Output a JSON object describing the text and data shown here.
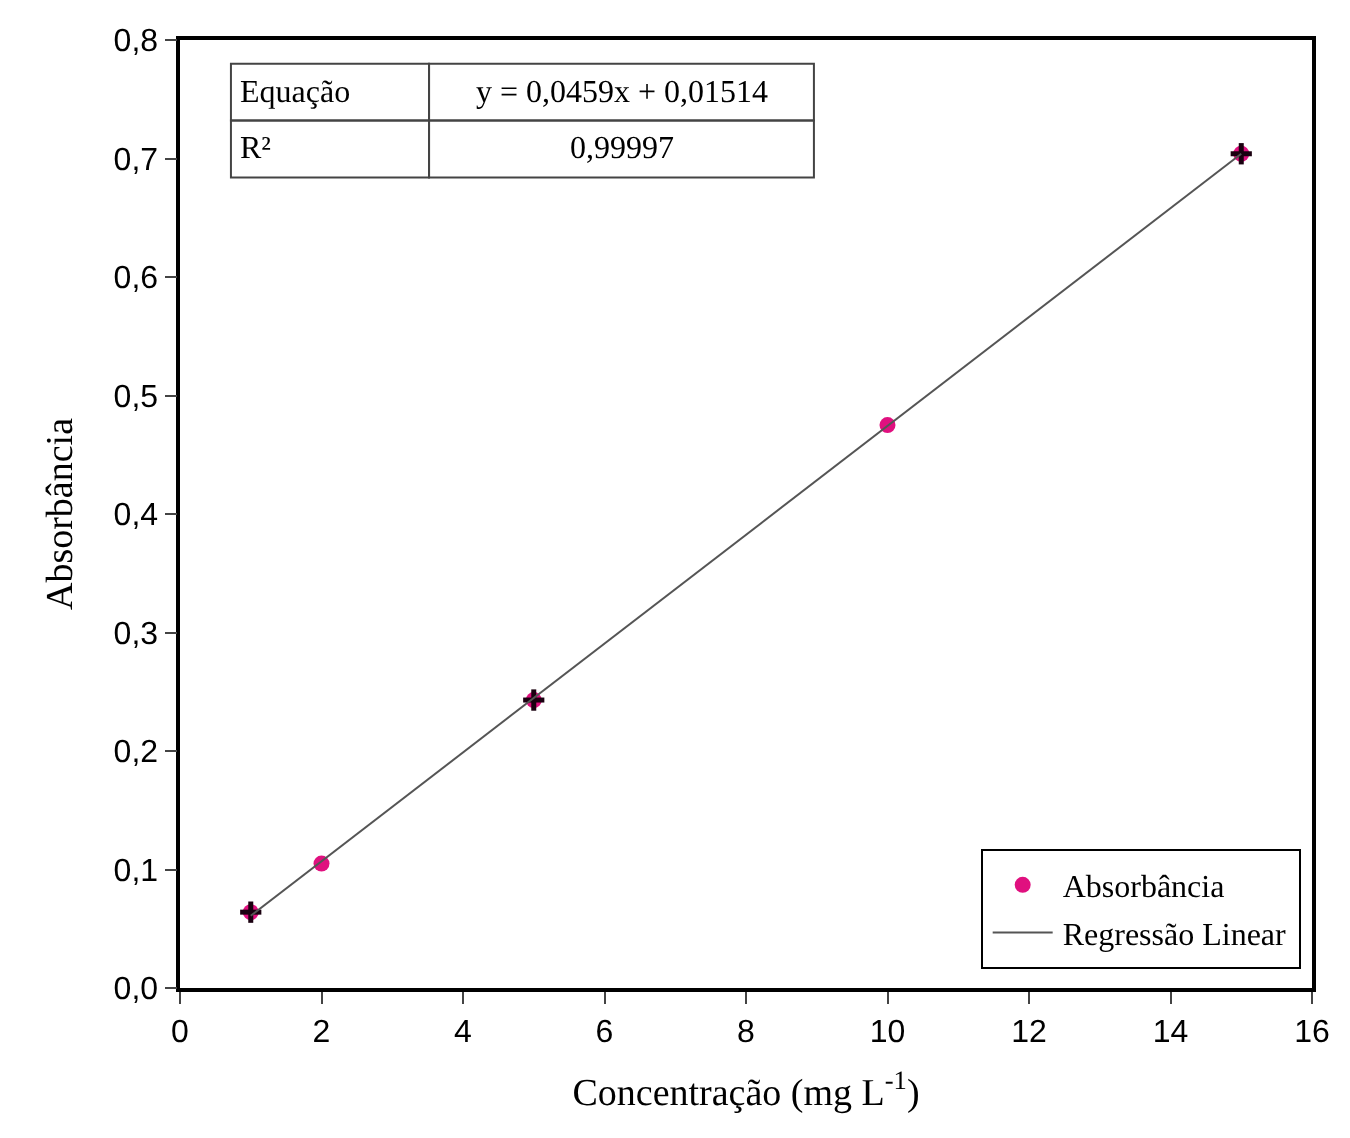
{
  "chart_data": {
    "type": "scatter",
    "xlabel": "Concentração (mg L$^{-1}$)",
    "ylabel": "Absorbância",
    "xlim": [
      0,
      16
    ],
    "xticks": [
      0,
      2,
      4,
      6,
      8,
      10,
      12,
      14,
      16
    ],
    "ylim": [
      0,
      0.8
    ],
    "yticks": [
      {
        "value": 0,
        "label": "0,0"
      },
      {
        "value": 0.1,
        "label": "0,1"
      },
      {
        "value": 0.2,
        "label": "0,2"
      },
      {
        "value": 0.3,
        "label": "0,3"
      },
      {
        "value": 0.4,
        "label": "0,4"
      },
      {
        "value": 0.5,
        "label": "0,5"
      },
      {
        "value": 0.6,
        "label": "0,6"
      },
      {
        "value": 0.7,
        "label": "0,7"
      },
      {
        "value": 0.8,
        "label": "0,8"
      }
    ],
    "series": [
      {
        "name": "Absorbância",
        "color": "#e0107f",
        "marker": "circle",
        "x": [
          1,
          2,
          5,
          10,
          15
        ],
        "values": [
          0.064,
          0.105,
          0.243,
          0.475,
          0.704
        ],
        "errors": [
          0.009,
          null,
          0.009,
          null,
          0.009
        ],
        "xerrors": [
          0.15,
          null,
          0.15,
          null,
          0.15
        ]
      },
      {
        "name": "Regressão Linear",
        "type": "line",
        "color": "#555555",
        "line_style": "solid",
        "x": [
          1,
          15
        ],
        "values": [
          0.061,
          0.704
        ]
      }
    ],
    "annotations": [
      "Equação",
      "y = 0,0459x + 0,01514",
      "R²",
      "0,99997"
    ],
    "legend": "bottom right",
    "grid": false
  }
}
